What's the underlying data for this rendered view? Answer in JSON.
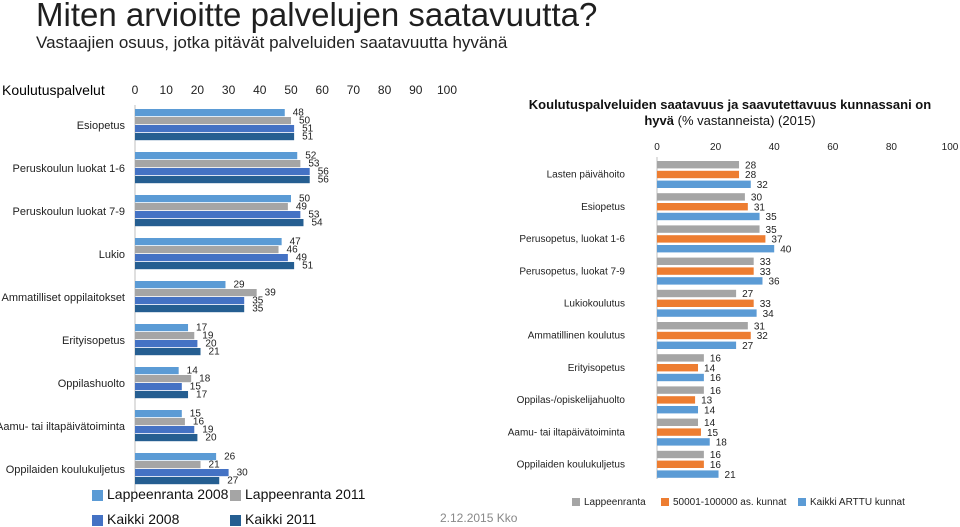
{
  "header": {
    "title": "Miten arvioitte palvelujen saatavuutta?",
    "subtitle": "Vastaajien osuus, jotka pitävät palveluiden saatavuutta hyvänä"
  },
  "footer": {
    "date": "2.12.2015 Kko"
  },
  "colors": {
    "left": [
      "#5b9bd5",
      "#a5a5a5",
      "#4472c4",
      "#255e91"
    ],
    "right": [
      "#a5a5a5",
      "#ed7d31",
      "#5b9bd5"
    ]
  },
  "chart_data": [
    {
      "type": "bar",
      "orientation": "horizontal",
      "title": "Koulutuspalvelut",
      "xlim": [
        0,
        100
      ],
      "xticks": [
        "0",
        "10",
        "20",
        "30",
        "40",
        "50",
        "60",
        "70",
        "80",
        "90",
        "100"
      ],
      "categories": [
        "Esiopetus",
        "Peruskoulun luokat 1-6",
        "Peruskoulun luokat 7-9",
        "Lukio",
        "Ammatilliset oppilaitokset",
        "Erityisopetus",
        "Oppilashuolto",
        "Aamu- tai iltapäivätoiminta",
        "Oppilaiden koulukuljetus"
      ],
      "series": [
        {
          "name": "Lappeenranta 2008",
          "values": [
            48,
            52,
            50,
            47,
            29,
            17,
            14,
            15,
            26
          ]
        },
        {
          "name": "Lappeenranta 2011",
          "values": [
            50,
            53,
            49,
            46,
            39,
            19,
            18,
            16,
            21
          ]
        },
        {
          "name": "Kaikki 2008",
          "values": [
            51,
            56,
            53,
            49,
            35,
            20,
            15,
            19,
            30
          ]
        },
        {
          "name": "Kaikki  2011",
          "values": [
            51,
            56,
            54,
            51,
            35,
            21,
            17,
            20,
            27
          ]
        }
      ]
    },
    {
      "type": "bar",
      "orientation": "horizontal",
      "title": "Koulutuspalveluiden saatavuus ja saavutettavuus kunnassani on hyvä",
      "title_suffix": "(% vastanneista) (2015)",
      "xlim": [
        0,
        100
      ],
      "xticks": [
        "0",
        "20",
        "40",
        "60",
        "80",
        "100"
      ],
      "categories": [
        "Lasten päivähoito",
        "Esiopetus",
        "Perusopetus, luokat 1-6",
        "Perusopetus, luokat 7-9",
        "Lukiokoulutus",
        "Ammatillinen koulutus",
        "Erityisopetus",
        "Oppilas-/opiskelijahuolto",
        "Aamu- tai iltapäivätoiminta",
        "Oppilaiden koulukuljetus"
      ],
      "series": [
        {
          "name": "Lappeenranta",
          "values": [
            28,
            30,
            35,
            33,
            27,
            31,
            16,
            16,
            14,
            16
          ]
        },
        {
          "name": "50001-100000 as. kunnat",
          "values": [
            28,
            31,
            37,
            33,
            33,
            32,
            14,
            13,
            15,
            16
          ]
        },
        {
          "name": "Kaikki ARTTU kunnat",
          "values": [
            32,
            35,
            40,
            36,
            34,
            27,
            16,
            14,
            18,
            21
          ]
        }
      ]
    }
  ]
}
